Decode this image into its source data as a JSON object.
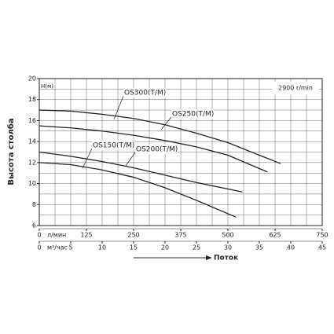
{
  "chart_data": {
    "type": "line",
    "y_label": "Высота столба",
    "y_unit": "H(м)",
    "x_label": "Поток",
    "x_unit": "м³/час",
    "x2_unit": "л/мин",
    "annotation": "2900 r/min",
    "xlim": [
      0,
      45
    ],
    "xticks": [
      0,
      5,
      10,
      15,
      20,
      25,
      30,
      35,
      40,
      45
    ],
    "x2lim": [
      0,
      750
    ],
    "x2ticks": [
      0,
      125,
      250,
      375,
      500,
      625,
      750
    ],
    "ylim": [
      6,
      20
    ],
    "yticks": [
      6,
      8,
      10,
      12,
      14,
      16,
      18,
      20
    ],
    "xgrid": [
      0,
      2.5,
      5,
      7.5,
      10,
      12.5,
      15,
      17.5,
      20,
      22.5,
      25,
      27.5,
      30,
      32.5,
      35,
      37.5,
      40,
      42.5,
      45
    ],
    "ygrid": [
      6,
      7,
      8,
      9,
      10,
      11,
      12,
      13,
      14,
      15,
      16,
      17,
      18,
      19,
      20
    ],
    "color": "#222222",
    "series": [
      {
        "name": "OS300(T/M)",
        "x": [
          0,
          5,
          10,
          15,
          20,
          25,
          30,
          35,
          38.4
        ],
        "values": [
          17,
          16.9,
          16.6,
          16.2,
          15.6,
          14.8,
          13.9,
          12.7,
          11.9
        ]
      },
      {
        "name": "OS250(T/M)",
        "x": [
          0,
          5,
          10,
          15,
          20,
          25,
          30,
          36.3
        ],
        "values": [
          15.5,
          15.3,
          15.0,
          14.6,
          14.1,
          13.5,
          12.7,
          11.1
        ]
      },
      {
        "name": "OS150(T/M)",
        "x": [
          0,
          5,
          10,
          15,
          20,
          25,
          31.3
        ],
        "values": [
          12,
          11.8,
          11.3,
          10.6,
          9.6,
          8.4,
          6.8
        ]
      },
      {
        "name": "OS200(T/M)",
        "x": [
          0,
          5,
          10,
          15,
          20,
          25,
          32.3
        ],
        "values": [
          13,
          12.6,
          12.1,
          11.5,
          10.8,
          10.1,
          9.2
        ]
      }
    ]
  }
}
